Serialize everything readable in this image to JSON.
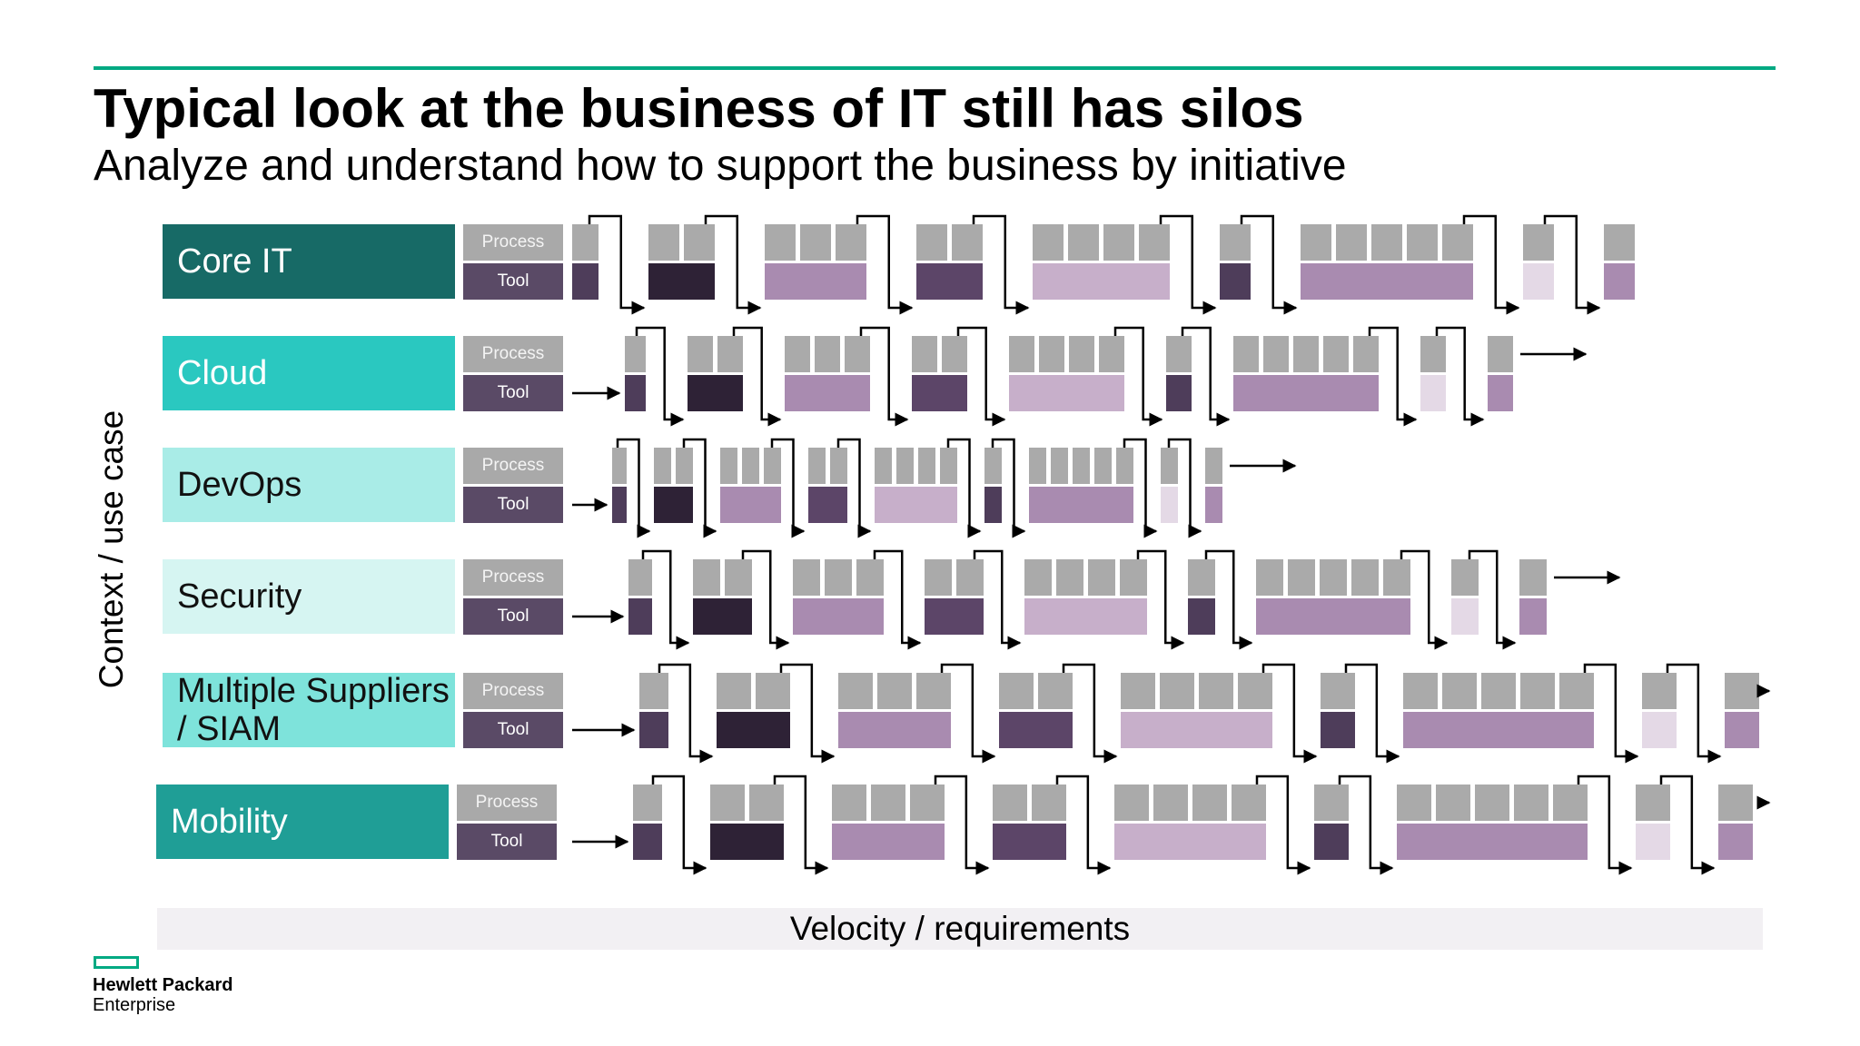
{
  "slide": {
    "title": "Typical look at the business of IT still has silos",
    "subtitle": "Analyze and understand how to support the business by initiative"
  },
  "y_axis_label": "Context / use case",
  "x_axis_label": "Velocity / requirements",
  "row_labels": {
    "process": "Process",
    "tool": "Tool"
  },
  "rows": [
    {
      "name": "Core IT",
      "bg": "#176a66",
      "fg": "#ffffff",
      "entry_arrow": false,
      "exit_arrow": false,
      "groups": [
        [
          1,
          "#4e3d5a"
        ],
        [
          2,
          "#2e2236"
        ],
        [
          3,
          "#a98bb0"
        ],
        [
          2,
          "#5c4568"
        ],
        [
          4,
          "#c7afca"
        ],
        [
          1,
          "#4e3d5a"
        ],
        [
          5,
          "#a98bb0"
        ],
        [
          1,
          "#e4d9e6"
        ],
        [
          1,
          "#a98bb0"
        ]
      ]
    },
    {
      "name": "Cloud",
      "bg": "#2ac8c0",
      "fg": "#ffffff",
      "entry_arrow": true,
      "exit_arrow": true,
      "groups": [
        [
          1,
          "#4e3d5a"
        ],
        [
          2,
          "#2e2236"
        ],
        [
          3,
          "#a98bb0"
        ],
        [
          2,
          "#5c4568"
        ],
        [
          4,
          "#c7afca"
        ],
        [
          1,
          "#4e3d5a"
        ],
        [
          5,
          "#a98bb0"
        ],
        [
          1,
          "#e4d9e6"
        ],
        [
          1,
          "#a98bb0"
        ]
      ]
    },
    {
      "name": "DevOps",
      "bg": "#a9ece7",
      "fg": "#111111",
      "entry_arrow": true,
      "exit_arrow": true,
      "groups": [
        [
          1,
          "#4e3d5a"
        ],
        [
          2,
          "#2e2236"
        ],
        [
          3,
          "#a98bb0"
        ],
        [
          2,
          "#5c4568"
        ],
        [
          4,
          "#c7afca"
        ],
        [
          1,
          "#4e3d5a"
        ],
        [
          5,
          "#a98bb0"
        ],
        [
          1,
          "#e4d9e6"
        ],
        [
          1,
          "#a98bb0"
        ]
      ]
    },
    {
      "name": "Security",
      "bg": "#d6f5f2",
      "fg": "#111111",
      "entry_arrow": true,
      "exit_arrow": true,
      "groups": [
        [
          1,
          "#4e3d5a"
        ],
        [
          2,
          "#2e2236"
        ],
        [
          3,
          "#a98bb0"
        ],
        [
          2,
          "#5c4568"
        ],
        [
          4,
          "#c7afca"
        ],
        [
          1,
          "#4e3d5a"
        ],
        [
          5,
          "#a98bb0"
        ],
        [
          1,
          "#e4d9e6"
        ],
        [
          1,
          "#a98bb0"
        ]
      ]
    },
    {
      "name": "Multiple Suppliers / SIAM",
      "bg": "#7ee3db",
      "fg": "#111111",
      "entry_arrow": true,
      "exit_arrow": true,
      "groups": [
        [
          1,
          "#4e3d5a"
        ],
        [
          2,
          "#2e2236"
        ],
        [
          3,
          "#a98bb0"
        ],
        [
          2,
          "#5c4568"
        ],
        [
          4,
          "#c7afca"
        ],
        [
          1,
          "#4e3d5a"
        ],
        [
          5,
          "#a98bb0"
        ],
        [
          1,
          "#e4d9e6"
        ],
        [
          1,
          "#a98bb0"
        ]
      ]
    },
    {
      "name": "Mobility",
      "bg": "#1f9e96",
      "fg": "#ffffff",
      "entry_arrow": true,
      "exit_arrow": true,
      "groups": [
        [
          1,
          "#4e3d5a"
        ],
        [
          2,
          "#2e2236"
        ],
        [
          3,
          "#a98bb0"
        ],
        [
          2,
          "#5c4568"
        ],
        [
          4,
          "#c7afca"
        ],
        [
          1,
          "#4e3d5a"
        ],
        [
          5,
          "#a98bb0"
        ],
        [
          1,
          "#e4d9e6"
        ],
        [
          1,
          "#a98bb0"
        ]
      ]
    }
  ],
  "logo": {
    "line1": "Hewlett Packard",
    "line2": "Enterprise",
    "color": "#01a982"
  }
}
